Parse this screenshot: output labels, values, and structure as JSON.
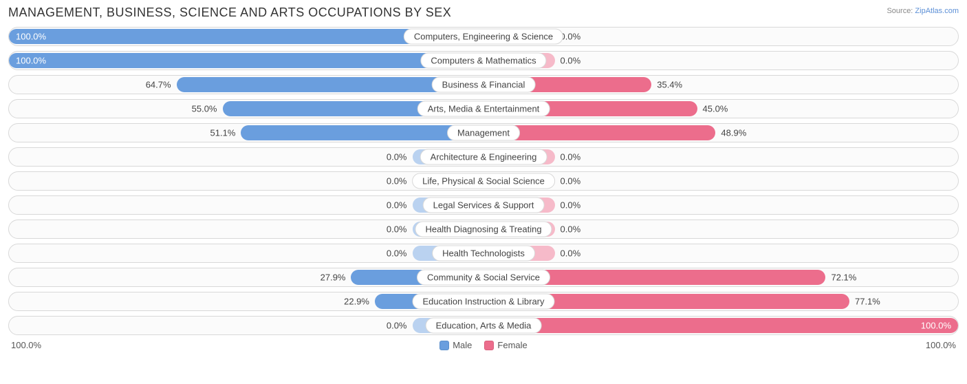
{
  "chart": {
    "title": "MANAGEMENT, BUSINESS, SCIENCE AND ARTS OCCUPATIONS BY SEX",
    "source_prefix": "Source: ",
    "source_link": "ZipAtlas.com",
    "type": "diverging-bar",
    "background_color": "#ffffff",
    "row_border_color": "#d8d8d8",
    "row_bg_color": "#fbfbfb",
    "male_full_color": "#6a9ede",
    "male_empty_color": "#bad2f0",
    "female_full_color": "#ec6d8c",
    "female_empty_color": "#f6bac9",
    "label_bg_color": "#ffffff",
    "label_fontsize": 13,
    "title_fontsize": 18,
    "empty_bar_extent_pct": 15,
    "axis": {
      "left_label": "100.0%",
      "right_label": "100.0%"
    },
    "legend": {
      "male": "Male",
      "female": "Female"
    },
    "rows": [
      {
        "category": "Computers, Engineering & Science",
        "male_pct": 100.0,
        "female_pct": 0.0,
        "male_label": "100.0%",
        "female_label": "0.0%"
      },
      {
        "category": "Computers & Mathematics",
        "male_pct": 100.0,
        "female_pct": 0.0,
        "male_label": "100.0%",
        "female_label": "0.0%"
      },
      {
        "category": "Business & Financial",
        "male_pct": 64.7,
        "female_pct": 35.4,
        "male_label": "64.7%",
        "female_label": "35.4%"
      },
      {
        "category": "Arts, Media & Entertainment",
        "male_pct": 55.0,
        "female_pct": 45.0,
        "male_label": "55.0%",
        "female_label": "45.0%"
      },
      {
        "category": "Management",
        "male_pct": 51.1,
        "female_pct": 48.9,
        "male_label": "51.1%",
        "female_label": "48.9%"
      },
      {
        "category": "Architecture & Engineering",
        "male_pct": 0.0,
        "female_pct": 0.0,
        "male_label": "0.0%",
        "female_label": "0.0%"
      },
      {
        "category": "Life, Physical & Social Science",
        "male_pct": 0.0,
        "female_pct": 0.0,
        "male_label": "0.0%",
        "female_label": "0.0%"
      },
      {
        "category": "Legal Services & Support",
        "male_pct": 0.0,
        "female_pct": 0.0,
        "male_label": "0.0%",
        "female_label": "0.0%"
      },
      {
        "category": "Health Diagnosing & Treating",
        "male_pct": 0.0,
        "female_pct": 0.0,
        "male_label": "0.0%",
        "female_label": "0.0%"
      },
      {
        "category": "Health Technologists",
        "male_pct": 0.0,
        "female_pct": 0.0,
        "male_label": "0.0%",
        "female_label": "0.0%"
      },
      {
        "category": "Community & Social Service",
        "male_pct": 27.9,
        "female_pct": 72.1,
        "male_label": "27.9%",
        "female_label": "72.1%"
      },
      {
        "category": "Education Instruction & Library",
        "male_pct": 22.9,
        "female_pct": 77.1,
        "male_label": "22.9%",
        "female_label": "77.1%"
      },
      {
        "category": "Education, Arts & Media",
        "male_pct": 0.0,
        "female_pct": 100.0,
        "male_label": "0.0%",
        "female_label": "100.0%"
      }
    ]
  }
}
